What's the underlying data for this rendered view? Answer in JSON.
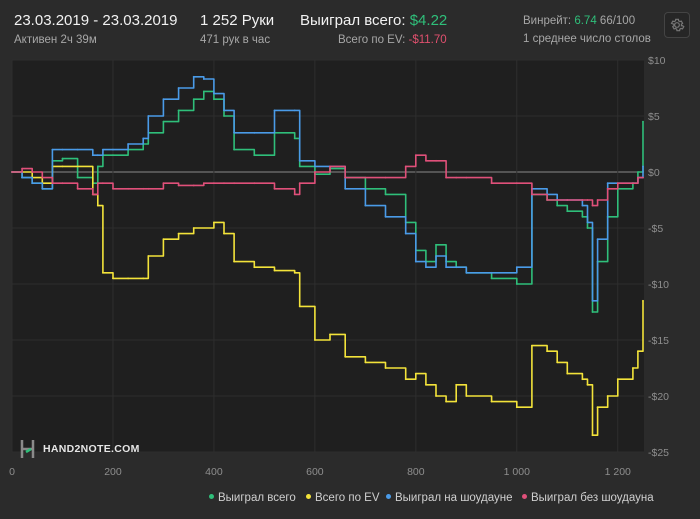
{
  "header": {
    "date_range": "23.03.2019 - 23.03.2019",
    "active": "Активен 2ч 39м",
    "hands": "1 252 Руки",
    "hands_per_hour": "471 рук в час",
    "won_label": "Выиграл всего:",
    "won_value": "$4.22",
    "ev_label": "Всего по EV:",
    "ev_value": "-$11.70",
    "winrate_label": "Винрейт:",
    "winrate_value": "6.74",
    "winrate_rest": "66/100",
    "tables": "1 среднее число столов"
  },
  "logo": {
    "text": "HAND2NOTE.COM"
  },
  "colors": {
    "won": "#2fbf7a",
    "ev": "#f3e33a",
    "showdown": "#4a9be8",
    "nonshowdown": "#e0507a",
    "background": "#2b2b2b",
    "plot_bg": "#1f1f1f"
  },
  "chart_data": {
    "type": "line",
    "xlabel": "",
    "ylabel": "",
    "xlim": [
      0,
      1252
    ],
    "ylim": [
      -25,
      10
    ],
    "x_ticks": [
      0,
      200,
      400,
      600,
      800,
      1000,
      1200
    ],
    "x_tick_labels": [
      "0",
      "200",
      "400",
      "600",
      "800",
      "1 000",
      "1 200"
    ],
    "y_ticks": [
      10,
      5,
      0,
      -5,
      -10,
      -15,
      -20,
      -25
    ],
    "y_tick_labels": [
      "$10",
      "$5",
      "$0",
      "-$5",
      "-$10",
      "-$15",
      "-$20",
      "-$25"
    ],
    "grid": true,
    "legend_position": "bottom-right",
    "series": [
      {
        "name": "Выиграл всего",
        "x": [
          0,
          20,
          40,
          60,
          80,
          100,
          130,
          160,
          170,
          180,
          200,
          230,
          260,
          270,
          300,
          330,
          360,
          380,
          400,
          420,
          440,
          480,
          520,
          560,
          570,
          600,
          630,
          660,
          700,
          740,
          780,
          800,
          820,
          840,
          860,
          880,
          900,
          950,
          1000,
          1030,
          1060,
          1080,
          1100,
          1130,
          1140,
          1150,
          1160,
          1180,
          1200,
          1230,
          1240,
          1250
        ],
        "values": [
          0,
          -0.5,
          -1,
          -1.5,
          1,
          1.2,
          -0.5,
          -1,
          0.5,
          1.5,
          1.5,
          2,
          2.5,
          3.5,
          4.5,
          5.5,
          6.5,
          7.2,
          6.5,
          5,
          2,
          1.5,
          3.5,
          3,
          0.5,
          -0.2,
          0.3,
          -0.5,
          -1.5,
          -2,
          -4.5,
          -7,
          -8,
          -6.5,
          -8,
          -8.5,
          -9,
          -9.5,
          -10,
          -2,
          -2.5,
          -3,
          -3.5,
          -4,
          -5,
          -12.5,
          -8,
          -4,
          -1.5,
          -1,
          0,
          4.5
        ]
      },
      {
        "name": "Всего по EV",
        "x": [
          0,
          40,
          60,
          80,
          100,
          160,
          170,
          180,
          200,
          230,
          260,
          270,
          300,
          330,
          360,
          400,
          420,
          440,
          480,
          520,
          560,
          570,
          600,
          630,
          660,
          700,
          740,
          780,
          800,
          820,
          840,
          860,
          880,
          900,
          950,
          1000,
          1030,
          1060,
          1080,
          1100,
          1130,
          1140,
          1150,
          1160,
          1180,
          1200,
          1230,
          1240,
          1250
        ],
        "values": [
          0,
          -0.5,
          -1,
          0.5,
          0.5,
          -2,
          -3,
          -9,
          -9.5,
          -9.5,
          -9.5,
          -7.5,
          -6,
          -5.5,
          -5,
          -4.5,
          -5.5,
          -8,
          -8.5,
          -8.8,
          -9,
          -12,
          -15,
          -14.5,
          -16.5,
          -17,
          -17.5,
          -18.5,
          -18,
          -19,
          -20,
          -20.5,
          -19,
          -20,
          -20.5,
          -21,
          -15.5,
          -16,
          -17,
          -18,
          -18.5,
          -19,
          -23.5,
          -21,
          -20,
          -18.5,
          -17.5,
          -16,
          -11.5
        ]
      },
      {
        "name": "Выиграл на шоудауне",
        "x": [
          0,
          20,
          40,
          60,
          80,
          100,
          130,
          160,
          170,
          180,
          200,
          230,
          260,
          270,
          300,
          330,
          360,
          380,
          400,
          420,
          440,
          480,
          520,
          560,
          570,
          600,
          630,
          660,
          700,
          740,
          780,
          800,
          820,
          840,
          860,
          880,
          900,
          950,
          1000,
          1030,
          1060,
          1080,
          1100,
          1130,
          1140,
          1150,
          1160,
          1180,
          1200,
          1230,
          1240,
          1250
        ],
        "values": [
          0,
          -0.5,
          -1,
          -1.5,
          2,
          2,
          2,
          1.5,
          1.5,
          2,
          2,
          2.5,
          3,
          5,
          6.5,
          7.5,
          8.5,
          8.3,
          7,
          5.5,
          3.5,
          3.5,
          5.5,
          5.5,
          1,
          0.5,
          0.5,
          -1.5,
          -3,
          -4,
          -5.5,
          -8,
          -8.5,
          -7.5,
          -8.5,
          -8.5,
          -9,
          -9,
          -8.5,
          -1.5,
          -2,
          -2.5,
          -2.5,
          -3,
          -4.5,
          -11.5,
          -6,
          -1,
          -1,
          -1,
          -0.5,
          0.5
        ]
      },
      {
        "name": "Выиграл без шоудауна",
        "x": [
          0,
          20,
          40,
          60,
          80,
          100,
          130,
          160,
          170,
          180,
          200,
          230,
          260,
          270,
          300,
          330,
          360,
          380,
          400,
          420,
          440,
          480,
          520,
          560,
          570,
          600,
          630,
          660,
          700,
          740,
          780,
          800,
          820,
          840,
          860,
          880,
          900,
          950,
          1000,
          1030,
          1060,
          1080,
          1100,
          1130,
          1140,
          1150,
          1160,
          1180,
          1200,
          1230,
          1240,
          1250
        ],
        "values": [
          0,
          0.3,
          0,
          -0.5,
          -1,
          -1,
          -1.5,
          -2,
          -1,
          -1,
          -1.5,
          -1.5,
          -1.5,
          -1.5,
          -1,
          -1.2,
          -1.2,
          -1,
          -1,
          -1,
          -1,
          -1,
          -1.5,
          -2,
          -1,
          0,
          0.5,
          -0.5,
          -0.5,
          -0.5,
          0.5,
          1.5,
          1,
          1,
          -0.5,
          -0.5,
          -0.5,
          -1,
          -1,
          -2,
          -2.5,
          -2.5,
          -2.5,
          -2.5,
          -2.5,
          -3,
          -2.5,
          -1.5,
          -1,
          -1,
          -0.5,
          -0.5
        ]
      }
    ]
  }
}
